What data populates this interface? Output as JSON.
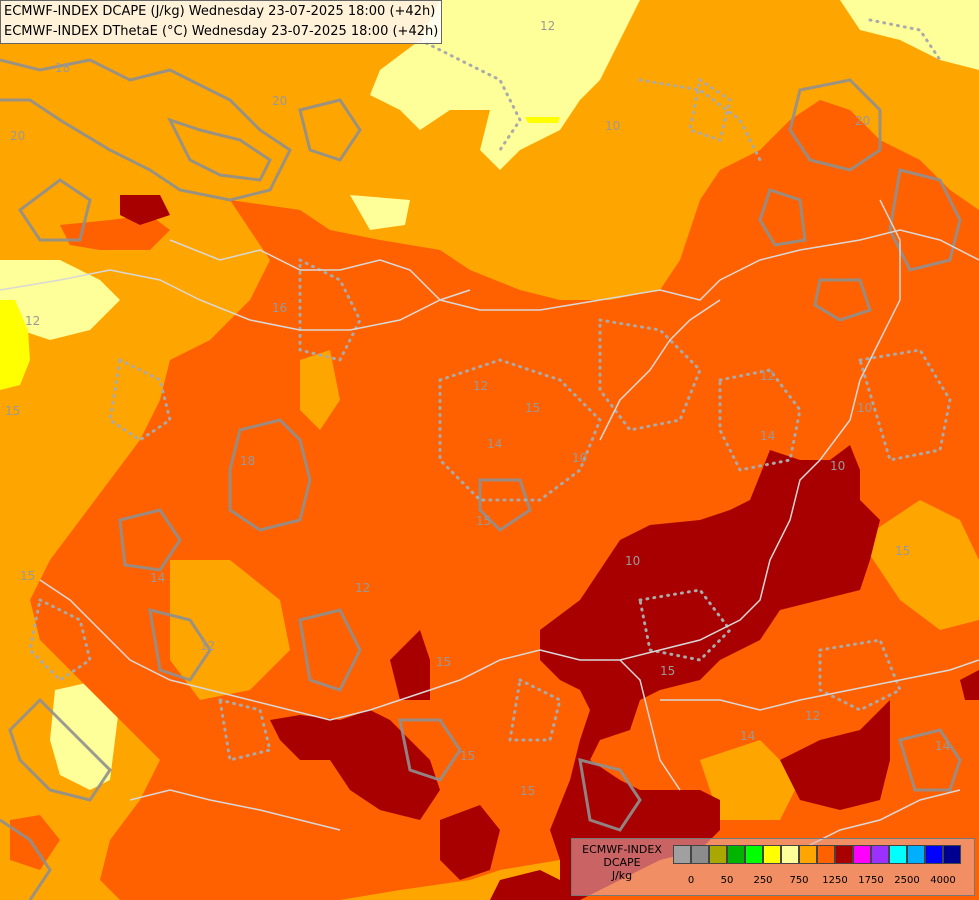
{
  "title": {
    "line1": "ECMWF-INDEX DCAPE (J/kg) Wednesday 23-07-2025 18:00 (+42h)",
    "line2": "ECMWF-INDEX DThetaE (°C) Wednesday 23-07-2025 18:00 (+42h)"
  },
  "legend": {
    "line1": "ECMWF-INDEX",
    "line2": "DCAPE",
    "line3": "J/kg",
    "swatch_colors": [
      "#a0a0a0",
      "#8c8c8c",
      "#a8a800",
      "#00b400",
      "#00ff00",
      "#ffff00",
      "#ffff99",
      "#ffa500",
      "#ff6000",
      "#a80000",
      "#ff00ff",
      "#9b30ff",
      "#00ffff",
      "#00b0ff",
      "#0000ff",
      "#000090"
    ],
    "tick_labels": [
      "0",
      "50",
      "250",
      "750",
      "1250",
      "1750",
      "2500",
      "4000"
    ]
  },
  "colors": {
    "dcape_750_1000": "#ffa500",
    "dcape_500_750": "#ffff99",
    "dcape_250_500": "#ffff00",
    "dcape_1000_1250": "#ff6000",
    "dcape_1250_1500": "#a80000",
    "contour_line": "#909090",
    "border_line": "#cccccc"
  },
  "contour_labels": [
    "20",
    "20",
    "18",
    "16",
    "12",
    "15",
    "12",
    "14",
    "15",
    "10",
    "12",
    "15",
    "15",
    "10",
    "14",
    "12",
    "18",
    "15",
    "10",
    "12",
    "15",
    "12",
    "10",
    "14",
    "10",
    "15",
    "12",
    "14",
    "15",
    "20",
    "14",
    "15"
  ]
}
